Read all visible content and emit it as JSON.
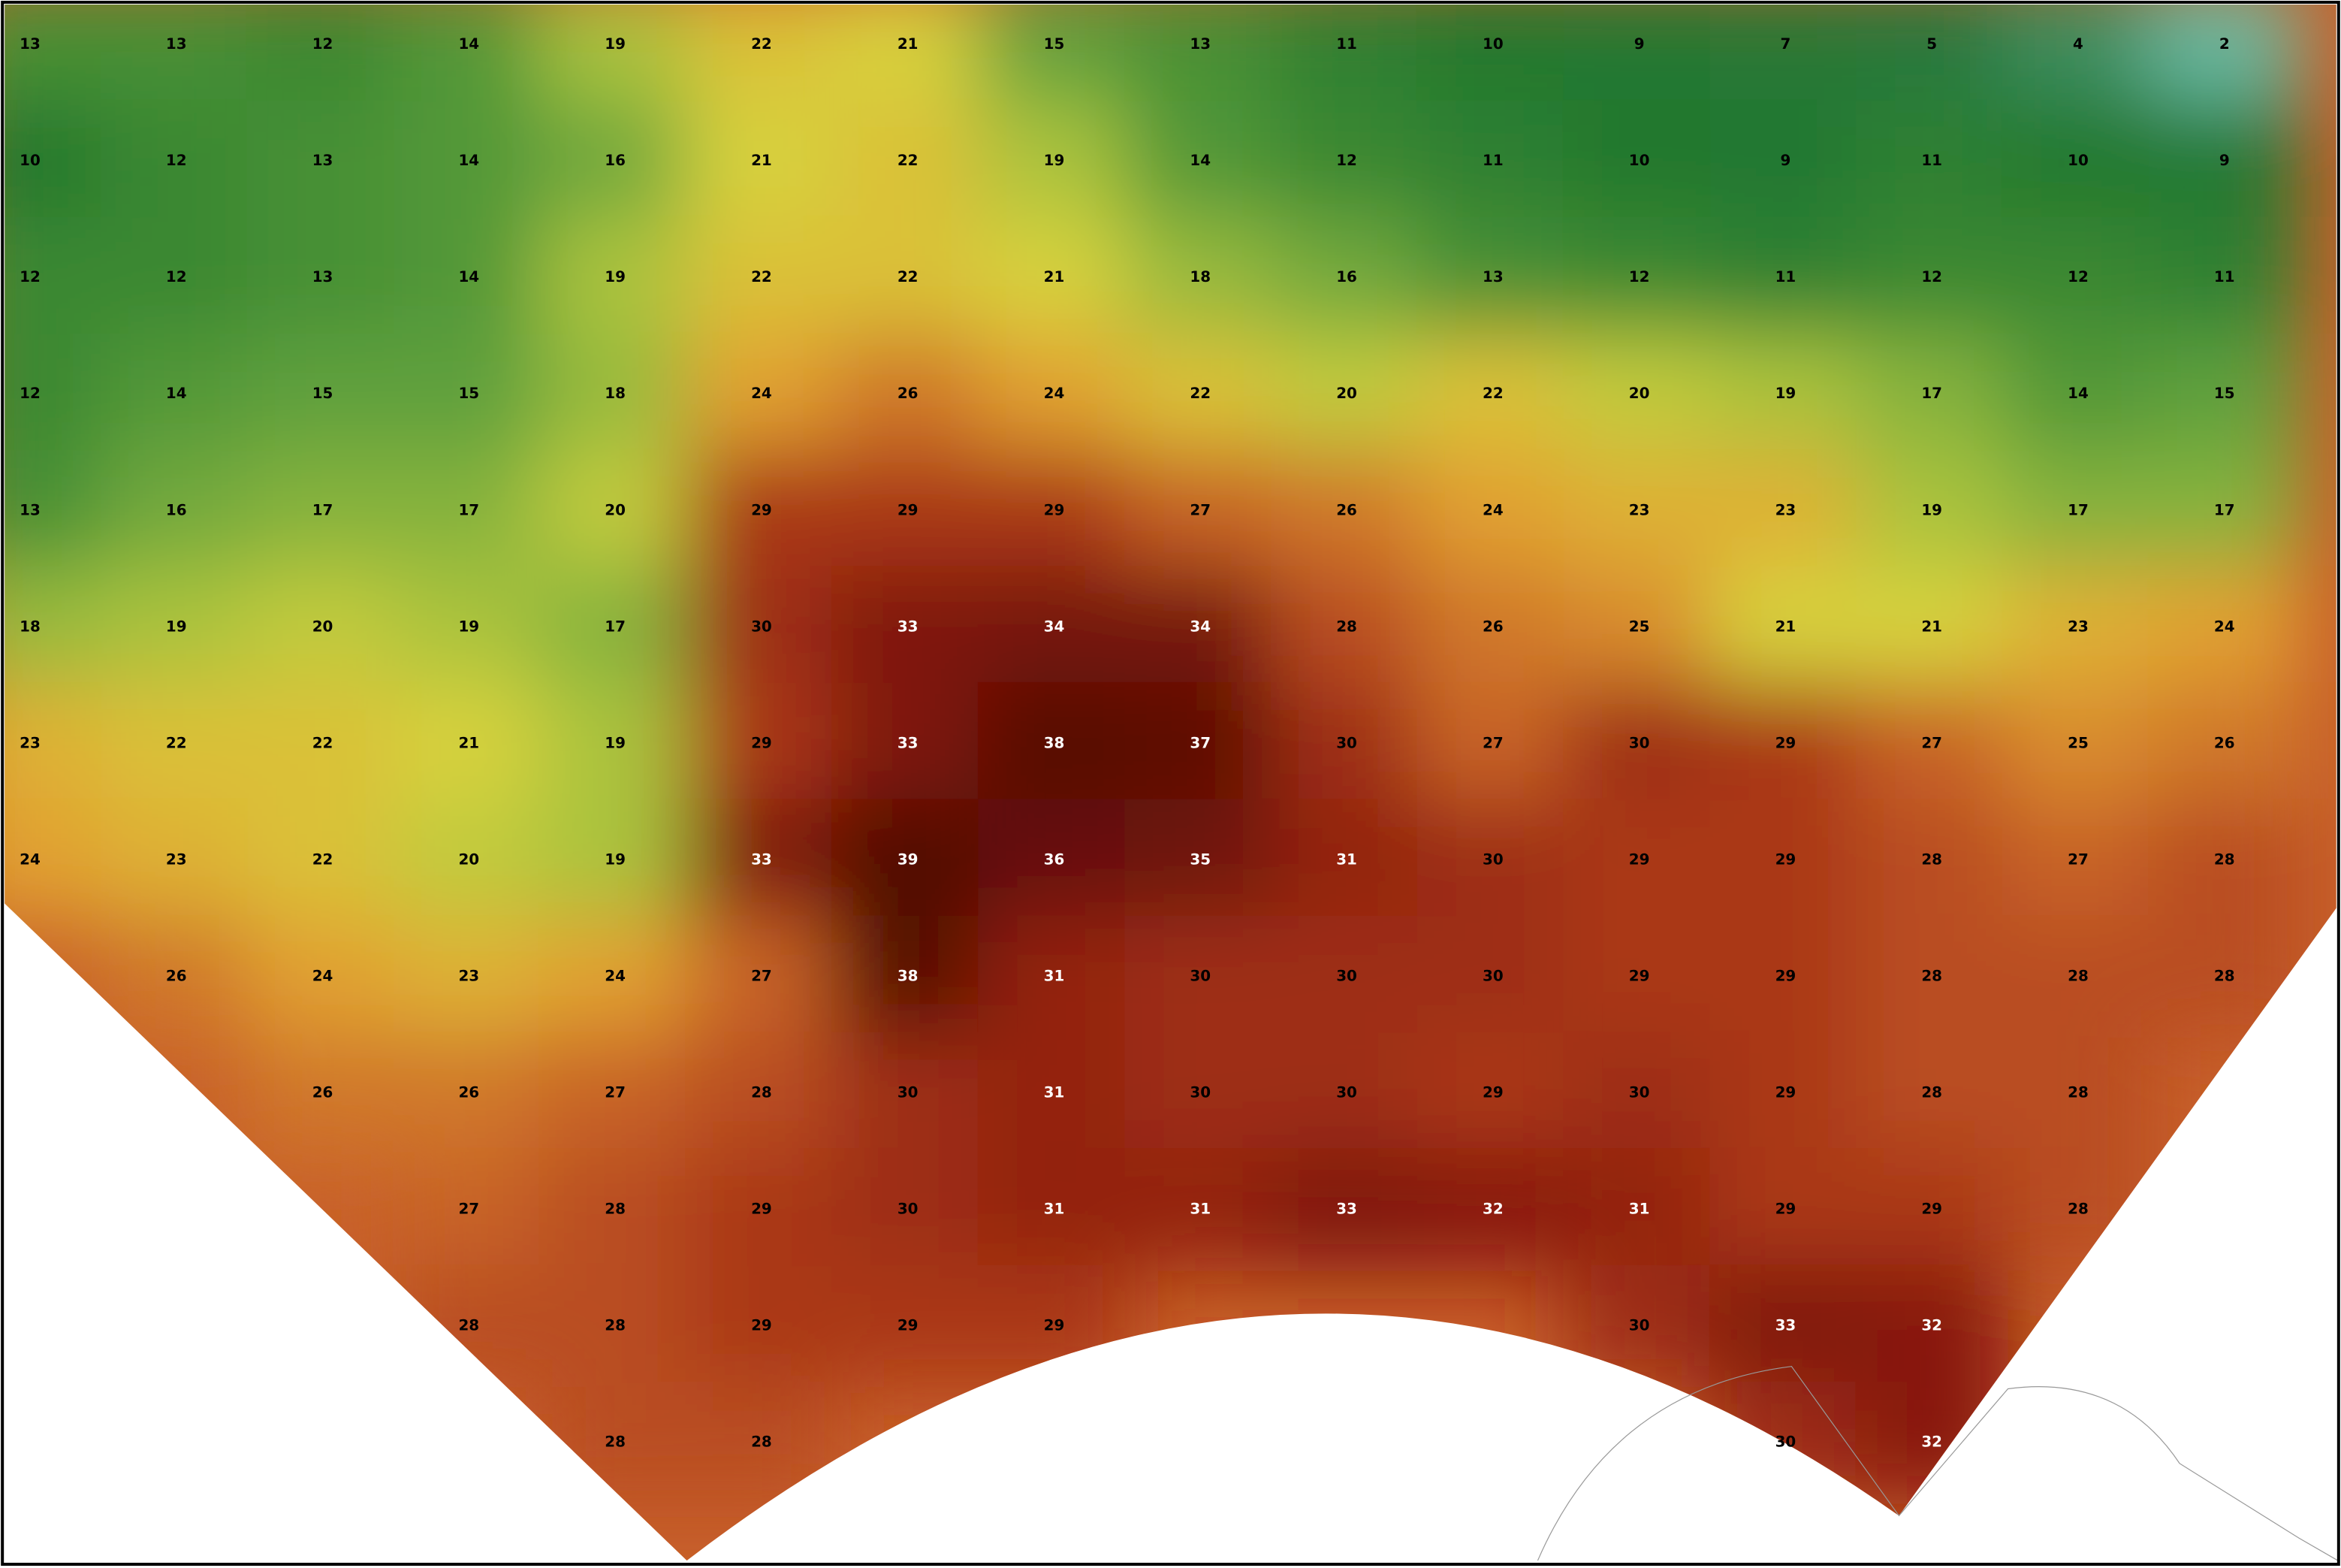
{
  "map": {
    "rows": [
      [
        13,
        13,
        12,
        14,
        19,
        22,
        21,
        15,
        13,
        11,
        10,
        9,
        7,
        5,
        4,
        2
      ],
      [
        10,
        12,
        13,
        14,
        16,
        21,
        22,
        19,
        14,
        12,
        11,
        10,
        9,
        11,
        10,
        9
      ],
      [
        12,
        12,
        13,
        14,
        19,
        22,
        22,
        21,
        18,
        16,
        13,
        12,
        11,
        12,
        12,
        11
      ],
      [
        12,
        14,
        15,
        15,
        18,
        24,
        26,
        24,
        22,
        20,
        22,
        20,
        19,
        17,
        14,
        15
      ],
      [
        13,
        16,
        17,
        17,
        20,
        29,
        29,
        29,
        27,
        26,
        24,
        23,
        23,
        19,
        17,
        17
      ],
      [
        18,
        19,
        20,
        19,
        17,
        30,
        33,
        34,
        34,
        28,
        26,
        25,
        21,
        21,
        23,
        24
      ],
      [
        23,
        22,
        22,
        21,
        19,
        29,
        33,
        38,
        37,
        30,
        27,
        30,
        29,
        27,
        25,
        26
      ],
      [
        24,
        23,
        22,
        20,
        19,
        33,
        39,
        36,
        35,
        31,
        30,
        29,
        29,
        28,
        27,
        28
      ],
      [
        null,
        26,
        24,
        23,
        24,
        27,
        38,
        31,
        30,
        30,
        30,
        29,
        29,
        28,
        28,
        28
      ],
      [
        null,
        null,
        26,
        26,
        27,
        28,
        30,
        31,
        30,
        30,
        29,
        30,
        29,
        28,
        28,
        null
      ],
      [
        null,
        null,
        null,
        27,
        28,
        29,
        30,
        31,
        31,
        33,
        32,
        31,
        29,
        29,
        28,
        null
      ],
      [
        null,
        null,
        null,
        28,
        28,
        29,
        29,
        29,
        null,
        null,
        null,
        30,
        33,
        32,
        null,
        null
      ],
      [
        null,
        null,
        null,
        null,
        28,
        28,
        null,
        null,
        null,
        null,
        null,
        null,
        30,
        32,
        null,
        null
      ]
    ]
  }
}
